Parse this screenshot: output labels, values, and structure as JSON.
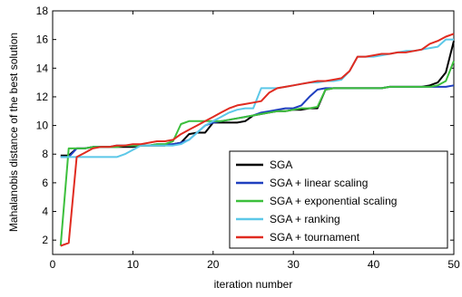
{
  "chart_data": {
    "type": "line",
    "xlabel": "iteration number",
    "ylabel": "Mahalanobis distance of the best solution",
    "xlim": [
      0,
      50
    ],
    "ylim": [
      1,
      18
    ],
    "x_ticks": [
      0,
      10,
      20,
      30,
      40,
      50
    ],
    "y_ticks": [
      2,
      4,
      6,
      8,
      10,
      12,
      14,
      16,
      18
    ],
    "x_tick_labels": [
      "0",
      "10",
      "20",
      "30",
      "40",
      "50"
    ],
    "y_tick_labels": [
      "2",
      "4",
      "6",
      "8",
      "10",
      "12",
      "14",
      "16",
      "18"
    ],
    "grid": false,
    "legend_position": "bottom-right",
    "x": [
      1,
      2,
      3,
      4,
      5,
      6,
      7,
      8,
      9,
      10,
      11,
      12,
      13,
      14,
      15,
      16,
      17,
      18,
      19,
      20,
      21,
      22,
      23,
      24,
      25,
      26,
      27,
      28,
      29,
      30,
      31,
      32,
      33,
      34,
      35,
      36,
      37,
      38,
      39,
      40,
      41,
      42,
      43,
      44,
      45,
      46,
      47,
      48,
      49,
      50
    ],
    "series": [
      {
        "name": "SGA",
        "color": "#000000",
        "values": [
          7.9,
          7.9,
          8.4,
          8.4,
          8.5,
          8.5,
          8.5,
          8.5,
          8.5,
          8.5,
          8.6,
          8.6,
          8.6,
          8.6,
          8.7,
          8.8,
          9.4,
          9.5,
          9.5,
          10.2,
          10.2,
          10.2,
          10.2,
          10.3,
          10.7,
          10.8,
          10.9,
          11.0,
          11.0,
          11.1,
          11.1,
          11.2,
          11.2,
          12.5,
          12.6,
          12.6,
          12.6,
          12.6,
          12.6,
          12.6,
          12.6,
          12.7,
          12.7,
          12.7,
          12.7,
          12.7,
          12.8,
          13.0,
          13.7,
          15.9
        ]
      },
      {
        "name": "SGA + linear scaling",
        "color": "#1f3fbf",
        "values": [
          7.8,
          7.8,
          8.4,
          8.4,
          8.5,
          8.5,
          8.5,
          8.6,
          8.6,
          8.6,
          8.6,
          8.6,
          8.7,
          8.7,
          8.7,
          8.8,
          9.0,
          9.5,
          10.0,
          10.2,
          10.3,
          10.4,
          10.5,
          10.6,
          10.7,
          10.9,
          11.0,
          11.1,
          11.2,
          11.2,
          11.4,
          12.0,
          12.5,
          12.6,
          12.6,
          12.6,
          12.6,
          12.6,
          12.6,
          12.6,
          12.6,
          12.7,
          12.7,
          12.7,
          12.7,
          12.7,
          12.7,
          12.7,
          12.7,
          12.8
        ]
      },
      {
        "name": "SGA + exponential scaling",
        "color": "#3cbf3c",
        "values": [
          1.6,
          8.4,
          8.4,
          8.4,
          8.5,
          8.5,
          8.5,
          8.5,
          8.6,
          8.6,
          8.6,
          8.6,
          8.7,
          8.7,
          8.9,
          10.1,
          10.3,
          10.3,
          10.3,
          10.3,
          10.3,
          10.4,
          10.5,
          10.6,
          10.7,
          10.8,
          10.9,
          11.0,
          11.0,
          11.1,
          11.2,
          11.2,
          11.3,
          12.5,
          12.6,
          12.6,
          12.6,
          12.6,
          12.6,
          12.6,
          12.6,
          12.7,
          12.7,
          12.7,
          12.7,
          12.7,
          12.7,
          12.8,
          13.1,
          14.5
        ]
      },
      {
        "name": "SGA + ranking",
        "color": "#5cc8e8",
        "values": [
          7.8,
          7.8,
          7.8,
          7.8,
          7.8,
          7.8,
          7.8,
          7.8,
          8.0,
          8.3,
          8.6,
          8.6,
          8.6,
          8.6,
          8.6,
          8.7,
          9.0,
          9.5,
          10.0,
          10.3,
          10.6,
          10.9,
          11.1,
          11.2,
          11.2,
          12.6,
          12.6,
          12.6,
          12.7,
          12.8,
          12.9,
          13.0,
          13.0,
          13.1,
          13.1,
          13.2,
          13.8,
          14.8,
          14.8,
          14.8,
          14.9,
          15.0,
          15.1,
          15.2,
          15.2,
          15.3,
          15.4,
          15.5,
          16.0,
          16.0
        ]
      },
      {
        "name": "SGA + tournament",
        "color": "#e02b20",
        "values": [
          1.6,
          1.8,
          7.8,
          8.1,
          8.4,
          8.5,
          8.5,
          8.6,
          8.6,
          8.7,
          8.7,
          8.8,
          8.9,
          8.9,
          9.0,
          9.4,
          9.7,
          10.0,
          10.3,
          10.6,
          10.9,
          11.2,
          11.4,
          11.5,
          11.6,
          11.7,
          12.3,
          12.6,
          12.7,
          12.8,
          12.9,
          13.0,
          13.1,
          13.1,
          13.2,
          13.3,
          13.8,
          14.8,
          14.8,
          14.9,
          15.0,
          15.0,
          15.1,
          15.1,
          15.2,
          15.3,
          15.7,
          15.9,
          16.2,
          16.4
        ]
      }
    ]
  }
}
